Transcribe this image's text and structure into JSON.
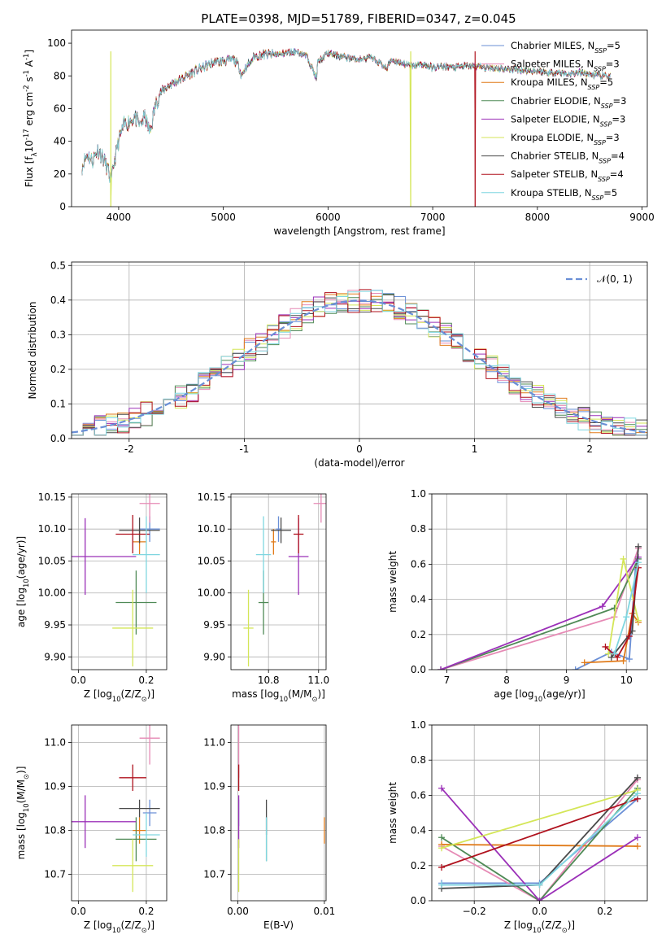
{
  "figure_title": "PLATE=0398, MJD=51789, FIBERID=0347, z=0.045",
  "series": [
    {
      "name": "Chabrier MILES, N$_{SSP}$=5",
      "label_main": "Chabrier MILES, N",
      "label_sub": "SSP",
      "label_tail": "=5",
      "color": "#6a8fd6"
    },
    {
      "name": "Salpeter MILES, N$_{SSP}$=3",
      "label_main": "Salpeter MILES, N",
      "label_sub": "SSP",
      "label_tail": "=3",
      "color": "#e68ab5"
    },
    {
      "name": "Kroupa MILES, N$_{SSP}$=5",
      "label_main": "Kroupa MILES, N",
      "label_sub": "SSP",
      "label_tail": "=5",
      "color": "#e07b1a"
    },
    {
      "name": "Chabrier ELODIE, N$_{SSP}$=3",
      "label_main": "Chabrier ELODIE, N",
      "label_sub": "SSP",
      "label_tail": "=3",
      "color": "#4f8a56"
    },
    {
      "name": "Salpeter ELODIE, N$_{SSP}$=3",
      "label_main": "Salpeter ELODIE, N",
      "label_sub": "SSP",
      "label_tail": "=3",
      "color": "#9b30b8"
    },
    {
      "name": "Kroupa ELODIE, N$_{SSP}$=3",
      "label_main": "Kroupa ELODIE, N",
      "label_sub": "SSP",
      "label_tail": "=3",
      "color": "#d4e657"
    },
    {
      "name": "Chabrier STELIB, N$_{SSP}$=4",
      "label_main": "Chabrier STELIB, N",
      "label_sub": "SSP",
      "label_tail": "=4",
      "color": "#4a4a4a"
    },
    {
      "name": "Salpeter STELIB, N$_{SSP}$=4",
      "label_main": "Salpeter STELIB, N",
      "label_sub": "SSP",
      "label_tail": "=4",
      "color": "#b0121e"
    },
    {
      "name": "Kroupa STELIB, N$_{SSP}$=5",
      "label_main": "Kroupa STELIB, N",
      "label_sub": "SSP",
      "label_tail": "=5",
      "color": "#7fd6e0"
    }
  ],
  "chart_data": [
    {
      "id": "spectrum",
      "type": "line",
      "xlabel": "wavelength [Angstrom, rest frame]",
      "ylabel": "Flux [f$_\\lambda$10$^{-17}$ erg cm$^{-2}$ s$^{-1}$ A$^{-1}$]",
      "xlim": [
        3550,
        9050
      ],
      "ylim": [
        0,
        108
      ],
      "xticks": [
        4000,
        5000,
        6000,
        7000,
        8000,
        9000
      ],
      "yticks": [
        0,
        20,
        40,
        60,
        80,
        100
      ],
      "grid": false,
      "legend": "top-right",
      "x": [
        3650,
        3700,
        3750,
        3800,
        3850,
        3900,
        3930,
        3950,
        4000,
        4050,
        4100,
        4150,
        4200,
        4250,
        4300,
        4350,
        4400,
        4500,
        4600,
        4700,
        4800,
        4900,
        5000,
        5100,
        5150,
        5175,
        5200,
        5300,
        5400,
        5500,
        5600,
        5700,
        5800,
        5893,
        5900,
        6000,
        6100,
        6200,
        6300,
        6400,
        6500,
        6563,
        6600,
        6700,
        6800,
        6900,
        7000,
        7100,
        7200,
        7300,
        7400,
        7500,
        7600,
        7700,
        7800,
        7900,
        8000,
        8100,
        8200,
        8300,
        8400,
        8500,
        8600,
        8700
      ],
      "flux": [
        25,
        32,
        28,
        35,
        30,
        22,
        15,
        25,
        40,
        50,
        52,
        55,
        50,
        55,
        45,
        62,
        70,
        75,
        78,
        82,
        85,
        88,
        89,
        90,
        86,
        80,
        84,
        92,
        93,
        93,
        94,
        95,
        92,
        78,
        88,
        94,
        92,
        91,
        90,
        91,
        88,
        84,
        90,
        88,
        86,
        87,
        85,
        86,
        85,
        86,
        86,
        85,
        85,
        84,
        84,
        83,
        83,
        82,
        82,
        81,
        82,
        81,
        80,
        80
      ],
      "drop_lines": [
        {
          "series": 5,
          "x": 3925,
          "min": 0
        },
        {
          "series": 5,
          "x": 6790,
          "min": 0
        },
        {
          "series": 7,
          "x": 7405,
          "min": 0
        }
      ]
    },
    {
      "id": "residuals",
      "type": "histogram",
      "xlabel": "(data-model)/error",
      "ylabel": "Normed distribution",
      "xlim": [
        -2.5,
        2.5
      ],
      "ylim": [
        0,
        0.51
      ],
      "xticks": [
        -2,
        -1,
        0,
        1,
        2
      ],
      "yticks": [
        0,
        0.1,
        0.2,
        0.3,
        0.4,
        0.5
      ],
      "grid": true,
      "legend": "top-right",
      "legend_label": "$\\mathcal{N}(0,1)$",
      "legend_main": "𝒩(0, 1)",
      "curve": "normal(0,1)",
      "curve_color": "#6a8fd6",
      "bin_width": 0.1
    },
    {
      "id": "age_vs_Z",
      "type": "errorbar",
      "xlabel": "Z [log$_{10}$(Z/Z$_\\odot$)]",
      "ylabel": "age  [log$_{10}$(age/yr)]",
      "xlim": [
        -0.02,
        0.26
      ],
      "ylim": [
        9.88,
        10.155
      ],
      "xticks": [
        0.0,
        0.2
      ],
      "yticks": [
        9.9,
        9.95,
        10.0,
        10.05,
        10.1,
        10.15
      ],
      "grid": true,
      "points": [
        {
          "s": 0,
          "x": 0.21,
          "xerr": 0.03,
          "y": 10.1,
          "yerr": 0.02
        },
        {
          "s": 1,
          "x": 0.21,
          "xerr": 0.03,
          "y": 10.14,
          "yerr": 0.03
        },
        {
          "s": 2,
          "x": 0.18,
          "xerr": 0.02,
          "y": 10.08,
          "yerr": 0.02
        },
        {
          "s": 3,
          "x": 0.17,
          "xerr": 0.06,
          "y": 9.985,
          "yerr": 0.05
        },
        {
          "s": 4,
          "x": 0.02,
          "xerr": 0.15,
          "y": 10.057,
          "yerr": 0.06
        },
        {
          "s": 5,
          "x": 0.16,
          "xerr": 0.06,
          "y": 9.945,
          "yerr": 0.06
        },
        {
          "s": 6,
          "x": 0.18,
          "xerr": 0.06,
          "y": 10.098,
          "yerr": 0.02
        },
        {
          "s": 7,
          "x": 0.16,
          "xerr": 0.05,
          "y": 10.092,
          "yerr": 0.03
        },
        {
          "s": 8,
          "x": 0.2,
          "xerr": 0.04,
          "y": 10.06,
          "yerr": 0.06
        }
      ]
    },
    {
      "id": "age_vs_mass",
      "type": "errorbar",
      "xlabel": "mass [log$_{10}$(M/M$_\\odot$)]",
      "ylabel": "",
      "xlim": [
        10.65,
        11.03
      ],
      "ylim": [
        9.88,
        10.155
      ],
      "xticks": [
        10.8,
        11.0
      ],
      "yticks": [
        9.9,
        9.95,
        10.0,
        10.05,
        10.1,
        10.15
      ],
      "grid": true,
      "points": [
        {
          "s": 0,
          "x": 10.84,
          "xerr": 0.01,
          "y": 10.1,
          "yerr": 0.02
        },
        {
          "s": 1,
          "x": 11.01,
          "xerr": 0.03,
          "y": 10.14,
          "yerr": 0.03
        },
        {
          "s": 2,
          "x": 10.82,
          "xerr": 0.01,
          "y": 10.08,
          "yerr": 0.02
        },
        {
          "s": 3,
          "x": 10.78,
          "xerr": 0.02,
          "y": 9.985,
          "yerr": 0.05
        },
        {
          "s": 4,
          "x": 10.92,
          "xerr": 0.04,
          "y": 10.057,
          "yerr": 0.06
        },
        {
          "s": 5,
          "x": 10.72,
          "xerr": 0.02,
          "y": 9.945,
          "yerr": 0.06
        },
        {
          "s": 6,
          "x": 10.85,
          "xerr": 0.04,
          "y": 10.098,
          "yerr": 0.02
        },
        {
          "s": 7,
          "x": 10.92,
          "xerr": 0.02,
          "y": 10.092,
          "yerr": 0.03
        },
        {
          "s": 8,
          "x": 10.78,
          "xerr": 0.03,
          "y": 10.06,
          "yerr": 0.06
        }
      ]
    },
    {
      "id": "weight_vs_age",
      "type": "line",
      "xlabel": "age  [log$_{10}$(age/yr)]",
      "ylabel": "mass weight",
      "xlim": [
        6.75,
        10.35
      ],
      "ylim": [
        0,
        1.0
      ],
      "xticks": [
        7,
        8,
        9,
        10
      ],
      "yticks": [
        0.0,
        0.2,
        0.4,
        0.6,
        0.8,
        1.0
      ],
      "grid": true,
      "lines": [
        {
          "s": 0,
          "x": [
            9.15,
            9.75,
            10.05,
            10.15
          ],
          "y": [
            0.0,
            0.1,
            0.06,
            0.57
          ]
        },
        {
          "s": 1,
          "x": [
            6.9,
            9.8,
            10.2
          ],
          "y": [
            0.0,
            0.3,
            0.69
          ]
        },
        {
          "s": 2,
          "x": [
            9.3,
            9.95,
            10.1,
            10.2
          ],
          "y": [
            0.04,
            0.05,
            0.32,
            0.27
          ]
        },
        {
          "s": 3,
          "x": [
            6.9,
            9.8,
            10.2
          ],
          "y": [
            0.0,
            0.35,
            0.63
          ]
        },
        {
          "s": 4,
          "x": [
            6.9,
            9.6,
            10.2
          ],
          "y": [
            0.0,
            0.36,
            0.64
          ]
        },
        {
          "s": 5,
          "x": [
            9.7,
            9.95,
            10.2
          ],
          "y": [
            0.09,
            0.63,
            0.28
          ]
        },
        {
          "s": 6,
          "x": [
            9.75,
            10.1,
            10.2
          ],
          "y": [
            0.07,
            0.22,
            0.7
          ]
        },
        {
          "s": 7,
          "x": [
            9.65,
            9.85,
            10.05,
            10.2
          ],
          "y": [
            0.13,
            0.07,
            0.19,
            0.58
          ]
        },
        {
          "s": 8,
          "x": [
            9.8,
            10.0,
            10.2
          ],
          "y": [
            0.09,
            0.3,
            0.61
          ]
        }
      ]
    },
    {
      "id": "mass_vs_Z",
      "type": "errorbar",
      "xlabel": "Z [log$_{10}$(Z/Z$_\\odot$)]",
      "ylabel": "mass [log$_{10}$(M/M$_\\odot$)]",
      "xlim": [
        -0.02,
        0.26
      ],
      "ylim": [
        10.64,
        11.04
      ],
      "xticks": [
        0.0,
        0.2
      ],
      "yticks": [
        10.7,
        10.8,
        10.9,
        11.0
      ],
      "grid": true,
      "points": [
        {
          "s": 0,
          "x": 0.21,
          "xerr": 0.02,
          "y": 10.84,
          "yerr": 0.03
        },
        {
          "s": 1,
          "x": 0.21,
          "xerr": 0.03,
          "y": 11.01,
          "yerr": 0.06
        },
        {
          "s": 2,
          "x": 0.18,
          "xerr": 0.02,
          "y": 10.8,
          "yerr": 0.03
        },
        {
          "s": 3,
          "x": 0.17,
          "xerr": 0.06,
          "y": 10.78,
          "yerr": 0.05
        },
        {
          "s": 4,
          "x": 0.02,
          "xerr": 0.15,
          "y": 10.82,
          "yerr": 0.06
        },
        {
          "s": 5,
          "x": 0.16,
          "xerr": 0.06,
          "y": 10.72,
          "yerr": 0.06
        },
        {
          "s": 6,
          "x": 0.18,
          "xerr": 0.06,
          "y": 10.85,
          "yerr": 0.02
        },
        {
          "s": 7,
          "x": 0.16,
          "xerr": 0.04,
          "y": 10.92,
          "yerr": 0.03
        },
        {
          "s": 8,
          "x": 0.2,
          "xerr": 0.04,
          "y": 10.79,
          "yerr": 0.05
        }
      ]
    },
    {
      "id": "mass_vs_ebv",
      "type": "errorbar",
      "xlabel": "E(B-V)",
      "ylabel": "",
      "xlim": [
        -0.0008,
        0.0102
      ],
      "ylim": [
        10.64,
        11.04
      ],
      "xticks": [
        0.0,
        0.01
      ],
      "yticks": [
        10.7,
        10.8,
        10.9,
        11.0
      ],
      "grid": true,
      "points": [
        {
          "s": 0,
          "x": 0.0001,
          "xerr": 0,
          "y": 10.84,
          "yerr": 0.03
        },
        {
          "s": 1,
          "x": 0.0001,
          "xerr": 0,
          "y": 11.0,
          "yerr": 0.08
        },
        {
          "s": 2,
          "x": 0.01,
          "xerr": 0,
          "y": 10.8,
          "yerr": 0.03
        },
        {
          "s": 3,
          "x": 0.0033,
          "xerr": 0,
          "y": 10.78,
          "yerr": 0.05
        },
        {
          "s": 4,
          "x": 0.0001,
          "xerr": 0,
          "y": 10.82,
          "yerr": 0.06
        },
        {
          "s": 5,
          "x": 0.0001,
          "xerr": 0,
          "y": 10.72,
          "yerr": 0.06
        },
        {
          "s": 6,
          "x": 0.0033,
          "xerr": 0,
          "y": 10.83,
          "yerr": 0.04
        },
        {
          "s": 7,
          "x": 0.0001,
          "xerr": 0,
          "y": 10.92,
          "yerr": 0.03
        },
        {
          "s": 8,
          "x": 0.0033,
          "xerr": 0,
          "y": 10.78,
          "yerr": 0.05
        }
      ]
    },
    {
      "id": "weight_vs_Z",
      "type": "line",
      "xlabel": "Z [log$_{10}$(Z/Z$_\\odot$)]",
      "ylabel": "mass weight",
      "xlim": [
        -0.33,
        0.33
      ],
      "ylim": [
        0,
        1.0
      ],
      "xticks": [
        -0.2,
        0.0,
        0.2
      ],
      "yticks": [
        0.0,
        0.2,
        0.4,
        0.6,
        0.8,
        1.0
      ],
      "grid": true,
      "lines": [
        {
          "s": 0,
          "x": [
            -0.3,
            0.0,
            0.3
          ],
          "y": [
            0.1,
            0.1,
            0.58
          ]
        },
        {
          "s": 1,
          "x": [
            -0.3,
            0.0,
            0.3
          ],
          "y": [
            0.31,
            0.0,
            0.69
          ]
        },
        {
          "s": 2,
          "x": [
            -0.3,
            0.3
          ],
          "y": [
            0.32,
            0.31
          ]
        },
        {
          "s": 3,
          "x": [
            -0.3,
            0.0,
            0.3
          ],
          "y": [
            0.36,
            0.0,
            0.64
          ]
        },
        {
          "s": 4,
          "x": [
            -0.3,
            0.0,
            0.3
          ],
          "y": [
            0.64,
            0.0,
            0.36
          ]
        },
        {
          "s": 5,
          "x": [
            -0.3,
            0.3
          ],
          "y": [
            0.3,
            0.63
          ]
        },
        {
          "s": 6,
          "x": [
            -0.3,
            0.0,
            0.3
          ],
          "y": [
            0.07,
            0.09,
            0.7
          ]
        },
        {
          "s": 7,
          "x": [
            -0.3,
            0.3
          ],
          "y": [
            0.19,
            0.58
          ]
        },
        {
          "s": 8,
          "x": [
            -0.3,
            0.0,
            0.3
          ],
          "y": [
            0.09,
            0.09,
            0.61
          ]
        }
      ]
    }
  ]
}
